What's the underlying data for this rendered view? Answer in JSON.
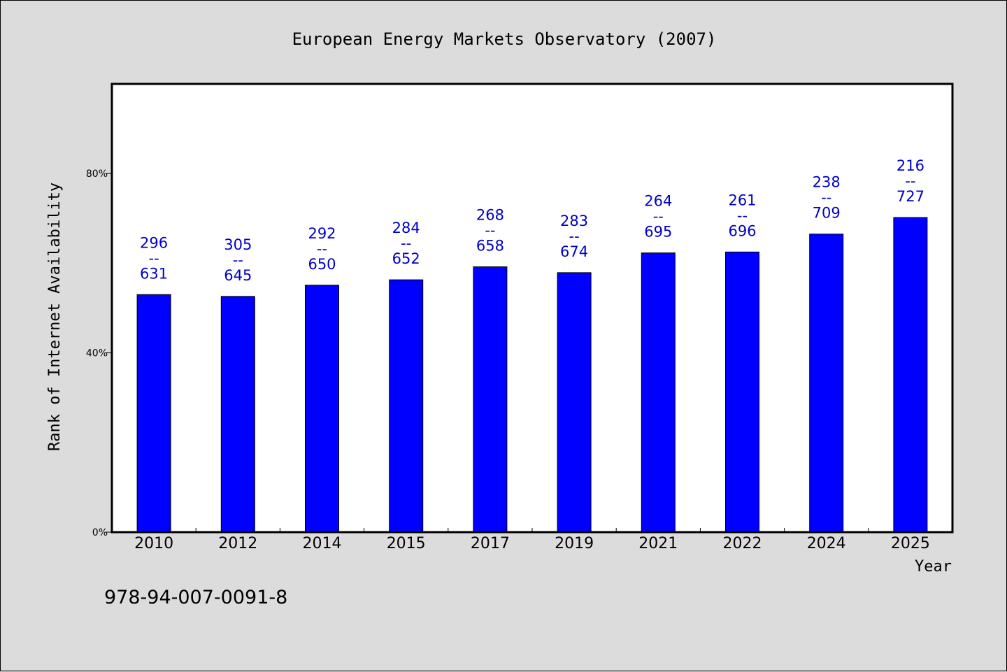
{
  "chart_data": {
    "type": "bar",
    "title": "European Energy Markets Observatory (2007)",
    "xlabel": "Year",
    "ylabel": "Rank of Internet Availability",
    "categories": [
      "2010",
      "2012",
      "2014",
      "2015",
      "2017",
      "2019",
      "2021",
      "2022",
      "2024",
      "2025"
    ],
    "series": [
      {
        "values": [
          53,
          52.6,
          55.1,
          56.3,
          59.2,
          57.9,
          62.3,
          62.5,
          66.5,
          70.2
        ]
      }
    ],
    "bar_labels": [
      {
        "top": "296",
        "mid": "--",
        "bottom": "631"
      },
      {
        "top": "305",
        "mid": "--",
        "bottom": "645"
      },
      {
        "top": "292",
        "mid": "--",
        "bottom": "650"
      },
      {
        "top": "284",
        "mid": "--",
        "bottom": "652"
      },
      {
        "top": "268",
        "mid": "--",
        "bottom": "658"
      },
      {
        "top": "283",
        "mid": "--",
        "bottom": "674"
      },
      {
        "top": "264",
        "mid": "--",
        "bottom": "695"
      },
      {
        "top": "261",
        "mid": "--",
        "bottom": "696"
      },
      {
        "top": "238",
        "mid": "--",
        "bottom": "709"
      },
      {
        "top": "216",
        "mid": "--",
        "bottom": "727"
      }
    ],
    "ylim": [
      0,
      100
    ],
    "yticks": [
      {
        "value": 0,
        "label": "0%"
      },
      {
        "value": 40,
        "label": "40%"
      },
      {
        "value": 80,
        "label": "80%"
      }
    ],
    "grid": false,
    "legend": "none",
    "colors": {
      "bar": "#0000ff",
      "bar_label": "#0000cc",
      "plot_bg": "#ffffff",
      "page_bg": "#dcdcdc"
    }
  },
  "footer": {
    "isbn": "978-94-007-0091-8"
  }
}
